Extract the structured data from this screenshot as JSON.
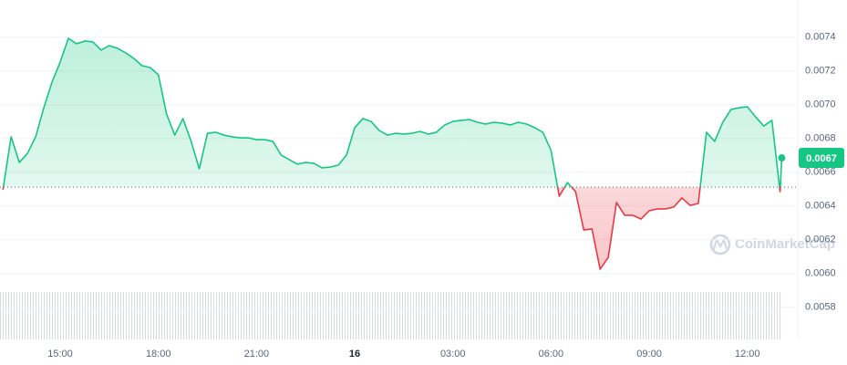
{
  "chart_data": {
    "type": "line",
    "watermark": "CoinMarketCap",
    "last_price_label": "0.0067",
    "baseline": 0.006512,
    "up_color": "#16c784",
    "down_color": "#ea3943",
    "grid": true,
    "xlim": [
      13.16,
      37.54
    ],
    "xticks": [
      {
        "value": 15,
        "label": "15:00"
      },
      {
        "value": 18,
        "label": "18:00"
      },
      {
        "value": 21,
        "label": "21:00"
      },
      {
        "value": 24,
        "label": "16"
      },
      {
        "value": 27,
        "label": "03:00"
      },
      {
        "value": 30,
        "label": "06:00"
      },
      {
        "value": 33,
        "label": "09:00"
      },
      {
        "value": 36,
        "label": "12:00"
      }
    ],
    "ylim": [
      0.00561,
      0.00762
    ],
    "yticks": [
      0.0058,
      {
        "value": 0.006,
        "label": "0.0060"
      },
      0.0062,
      0.0064,
      0.0066,
      0.0068,
      {
        "value": 0.007,
        "label": "0.0070"
      },
      0.0072,
      0.0074
    ],
    "x": [
      13.25,
      13.5,
      13.75,
      14,
      14.25,
      14.5,
      14.75,
      15,
      15.25,
      15.5,
      15.75,
      16,
      16.25,
      16.5,
      16.75,
      17,
      17.25,
      17.5,
      17.75,
      18,
      18.25,
      18.5,
      18.75,
      19,
      19.25,
      19.5,
      19.75,
      20,
      20.25,
      20.5,
      20.75,
      21,
      21.25,
      21.5,
      21.75,
      22,
      22.25,
      22.5,
      22.75,
      23,
      23.25,
      23.5,
      23.75,
      24,
      24.25,
      24.5,
      24.75,
      25,
      25.25,
      25.5,
      25.75,
      26,
      26.25,
      26.5,
      26.75,
      27,
      27.25,
      27.5,
      27.75,
      28,
      28.25,
      28.5,
      28.75,
      29,
      29.25,
      29.5,
      29.75,
      30,
      30.25,
      30.5,
      30.75,
      31,
      31.25,
      31.5,
      31.75,
      32,
      32.25,
      32.5,
      32.75,
      33,
      33.25,
      33.5,
      33.75,
      34,
      34.25,
      34.5,
      34.75,
      35,
      35.25,
      35.5,
      35.75,
      36,
      36.25,
      36.5,
      36.75,
      37,
      37.05
    ],
    "values": [
      0.006496,
      0.00681,
      0.006658,
      0.006712,
      0.00681,
      0.006982,
      0.007134,
      0.007253,
      0.007393,
      0.007361,
      0.007377,
      0.007372,
      0.007323,
      0.00735,
      0.007334,
      0.007307,
      0.007274,
      0.007231,
      0.00722,
      0.007177,
      0.006945,
      0.00682,
      0.006918,
      0.006783,
      0.00662,
      0.006831,
      0.006837,
      0.00682,
      0.00681,
      0.006804,
      0.006804,
      0.006793,
      0.006793,
      0.006783,
      0.006702,
      0.006675,
      0.006648,
      0.006658,
      0.006653,
      0.006626,
      0.006631,
      0.006642,
      0.006702,
      0.006864,
      0.006918,
      0.006901,
      0.006847,
      0.00682,
      0.006831,
      0.006826,
      0.006831,
      0.006842,
      0.006826,
      0.006837,
      0.00688,
      0.006901,
      0.006907,
      0.006912,
      0.006896,
      0.006885,
      0.006896,
      0.006891,
      0.00688,
      0.006896,
      0.006885,
      0.006864,
      0.006837,
      0.006729,
      0.006458,
      0.006539,
      0.006485,
      0.006258,
      0.006264,
      0.006026,
      0.006096,
      0.006421,
      0.006345,
      0.006345,
      0.006323,
      0.006372,
      0.006383,
      0.006383,
      0.006394,
      0.006448,
      0.006404,
      0.006415,
      0.006837,
      0.006783,
      0.006896,
      0.006972,
      0.006982,
      0.006988,
      0.006928,
      0.006874,
      0.006907,
      0.006485,
      0.006685
    ]
  }
}
